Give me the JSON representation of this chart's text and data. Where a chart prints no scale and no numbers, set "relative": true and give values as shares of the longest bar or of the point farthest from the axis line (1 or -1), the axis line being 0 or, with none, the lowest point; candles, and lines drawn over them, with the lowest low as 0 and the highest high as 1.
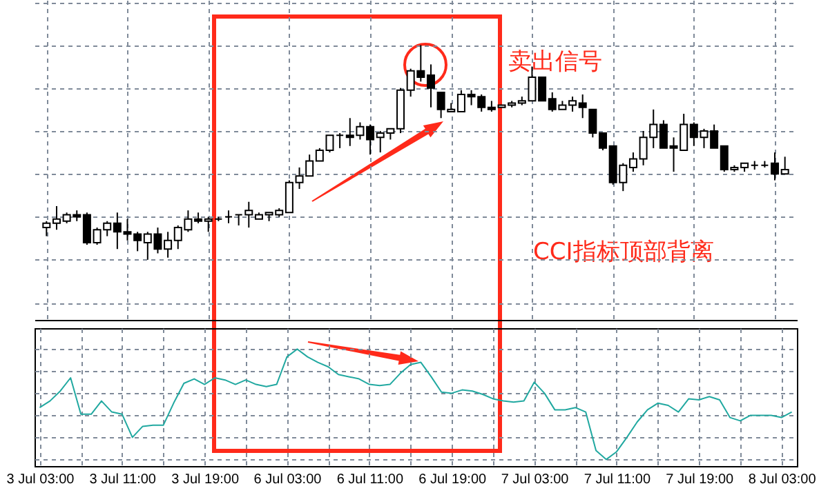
{
  "chart_data": [
    {
      "type": "candlestick",
      "relative": true,
      "grid": true,
      "tick_labels": false,
      "annotations": [
        "卖出信号",
        "CCI指标顶部背离"
      ],
      "categories": [
        null,
        null,
        null,
        null,
        null,
        null,
        null,
        null,
        null,
        null,
        null,
        null,
        null,
        null,
        null,
        null,
        null,
        null,
        null,
        null,
        null,
        null,
        null,
        null,
        null,
        null,
        null,
        null,
        null,
        null,
        null,
        null,
        null,
        null,
        null,
        null,
        null,
        null,
        null,
        null,
        null,
        null,
        null,
        null,
        null,
        null,
        null,
        null,
        null,
        null,
        null,
        null,
        null,
        null,
        null,
        null,
        null,
        null,
        null,
        null,
        null,
        null,
        null,
        null,
        null,
        null,
        null,
        null,
        null,
        null,
        null,
        null,
        null,
        null
      ],
      "ohlc": [
        [
          0.15,
          0.18,
          0.11,
          0.17
        ],
        [
          0.17,
          0.25,
          0.14,
          0.19
        ],
        [
          0.18,
          0.22,
          0.17,
          0.21
        ],
        [
          0.21,
          0.23,
          0.18,
          0.2
        ],
        [
          0.21,
          0.22,
          0.07,
          0.08
        ],
        [
          0.08,
          0.15,
          0.07,
          0.14
        ],
        [
          0.14,
          0.18,
          0.11,
          0.17
        ],
        [
          0.17,
          0.22,
          0.05,
          0.13
        ],
        [
          0.13,
          0.19,
          0.09,
          0.12
        ],
        [
          0.12,
          0.13,
          0.04,
          0.09
        ],
        [
          0.08,
          0.13,
          0.0,
          0.12
        ],
        [
          0.12,
          0.15,
          0.03,
          0.05
        ],
        [
          0.05,
          0.13,
          0.01,
          0.09
        ],
        [
          0.09,
          0.16,
          0.05,
          0.15
        ],
        [
          0.14,
          0.23,
          0.13,
          0.19
        ],
        [
          0.19,
          0.22,
          0.17,
          0.18
        ],
        [
          0.18,
          0.2,
          0.13,
          0.19
        ],
        [
          0.19,
          0.2,
          0.18,
          0.19
        ],
        [
          0.2,
          0.23,
          0.17,
          0.2
        ],
        [
          0.21,
          0.21,
          0.16,
          0.21
        ],
        [
          0.21,
          0.27,
          0.15,
          0.23
        ],
        [
          0.19,
          0.22,
          0.19,
          0.21
        ],
        [
          0.21,
          0.22,
          0.18,
          0.22
        ],
        [
          0.21,
          0.24,
          0.2,
          0.23
        ],
        [
          0.22,
          0.37,
          0.22,
          0.36
        ],
        [
          0.36,
          0.43,
          0.33,
          0.39
        ],
        [
          0.39,
          0.49,
          0.39,
          0.46
        ],
        [
          0.46,
          0.52,
          0.46,
          0.51
        ],
        [
          0.51,
          0.58,
          0.5,
          0.58
        ],
        [
          0.58,
          0.59,
          0.52,
          0.58
        ],
        [
          0.58,
          0.66,
          0.53,
          0.57
        ],
        [
          0.58,
          0.64,
          0.56,
          0.62
        ],
        [
          0.62,
          0.63,
          0.49,
          0.56
        ],
        [
          0.57,
          0.6,
          0.5,
          0.59
        ],
        [
          0.59,
          0.61,
          0.56,
          0.61
        ],
        [
          0.61,
          0.8,
          0.59,
          0.79
        ],
        [
          0.79,
          0.89,
          0.76,
          0.88
        ],
        [
          0.88,
          1.0,
          0.83,
          0.85
        ],
        [
          0.86,
          0.91,
          0.71,
          0.8
        ],
        [
          0.78,
          0.78,
          0.66,
          0.7
        ],
        [
          0.69,
          0.73,
          0.69,
          0.7
        ],
        [
          0.69,
          0.79,
          0.69,
          0.77
        ],
        [
          0.77,
          0.79,
          0.72,
          0.76
        ],
        [
          0.76,
          0.77,
          0.69,
          0.71
        ],
        [
          0.71,
          0.74,
          0.69,
          0.7
        ],
        [
          0.71,
          0.72,
          0.71,
          0.72
        ],
        [
          0.72,
          0.74,
          0.71,
          0.73
        ],
        [
          0.73,
          0.76,
          0.72,
          0.74
        ],
        [
          0.74,
          0.9,
          0.74,
          0.85
        ],
        [
          0.85,
          0.85,
          0.74,
          0.74
        ],
        [
          0.75,
          0.78,
          0.69,
          0.7
        ],
        [
          0.7,
          0.74,
          0.7,
          0.72
        ],
        [
          0.72,
          0.76,
          0.69,
          0.74
        ],
        [
          0.73,
          0.77,
          0.66,
          0.71
        ],
        [
          0.7,
          0.7,
          0.57,
          0.59
        ],
        [
          0.59,
          0.59,
          0.51,
          0.52
        ],
        [
          0.53,
          0.53,
          0.35,
          0.36
        ],
        [
          0.36,
          0.45,
          0.32,
          0.44
        ],
        [
          0.43,
          0.5,
          0.41,
          0.47
        ],
        [
          0.47,
          0.6,
          0.44,
          0.57
        ],
        [
          0.57,
          0.7,
          0.52,
          0.63
        ],
        [
          0.63,
          0.65,
          0.52,
          0.52
        ],
        [
          0.53,
          0.57,
          0.41,
          0.52
        ],
        [
          0.51,
          0.68,
          0.51,
          0.63
        ],
        [
          0.63,
          0.64,
          0.53,
          0.57
        ],
        [
          0.57,
          0.61,
          0.52,
          0.6
        ],
        [
          0.6,
          0.63,
          0.52,
          0.52
        ],
        [
          0.53,
          0.53,
          0.41,
          0.42
        ],
        [
          0.42,
          0.44,
          0.41,
          0.43
        ],
        [
          0.43,
          0.45,
          0.41,
          0.45
        ],
        [
          0.44,
          0.46,
          0.42,
          0.44
        ],
        [
          0.44,
          0.46,
          0.43,
          0.44
        ],
        [
          0.45,
          0.5,
          0.37,
          0.4
        ],
        [
          0.4,
          0.48,
          0.4,
          0.42
        ]
      ]
    },
    {
      "type": "line",
      "relative": true,
      "grid": true,
      "tick_labels": "x",
      "color": "#20a8a0",
      "categories": [
        "3 Jul 03:00",
        null,
        null,
        null,
        null,
        null,
        null,
        null,
        "3 Jul 11:00",
        null,
        null,
        null,
        null,
        null,
        null,
        null,
        "3 Jul 19:00",
        null,
        null,
        null,
        null,
        null,
        null,
        null,
        "6 Jul 03:00",
        null,
        null,
        null,
        null,
        null,
        null,
        null,
        "6 Jul 11:00",
        null,
        null,
        null,
        null,
        null,
        null,
        null,
        "6 Jul 19:00",
        null,
        null,
        null,
        null,
        null,
        null,
        null,
        "7 Jul 03:00",
        null,
        null,
        null,
        null,
        null,
        null,
        null,
        "7 Jul 11:00",
        null,
        null,
        null,
        null,
        null,
        null,
        null,
        "7 Jul 19:00",
        null,
        null,
        null,
        null,
        null,
        null,
        null,
        "8 Jul 03:00",
        null
      ],
      "values": [
        0.47,
        0.53,
        0.62,
        0.74,
        0.41,
        0.41,
        0.53,
        0.43,
        0.41,
        0.2,
        0.3,
        0.31,
        0.31,
        0.51,
        0.69,
        0.73,
        0.68,
        0.74,
        0.72,
        0.68,
        0.72,
        0.68,
        0.66,
        0.68,
        0.93,
        1,
        0.93,
        0.88,
        0.84,
        0.77,
        0.75,
        0.73,
        0.68,
        0.67,
        0.68,
        0.78,
        0.86,
        0.88,
        0.75,
        0.61,
        0.6,
        0.63,
        0.62,
        0.59,
        0.55,
        0.53,
        0.52,
        0.53,
        0.7,
        0.6,
        0.45,
        0.45,
        0.47,
        0.43,
        0.08,
        0,
        0.07,
        0.2,
        0.34,
        0.45,
        0.51,
        0.49,
        0.43,
        0.55,
        0.54,
        0.57,
        0.54,
        0.38,
        0.35,
        0.4,
        0.4,
        0.4,
        0.38,
        0.43
      ]
    }
  ]
}
